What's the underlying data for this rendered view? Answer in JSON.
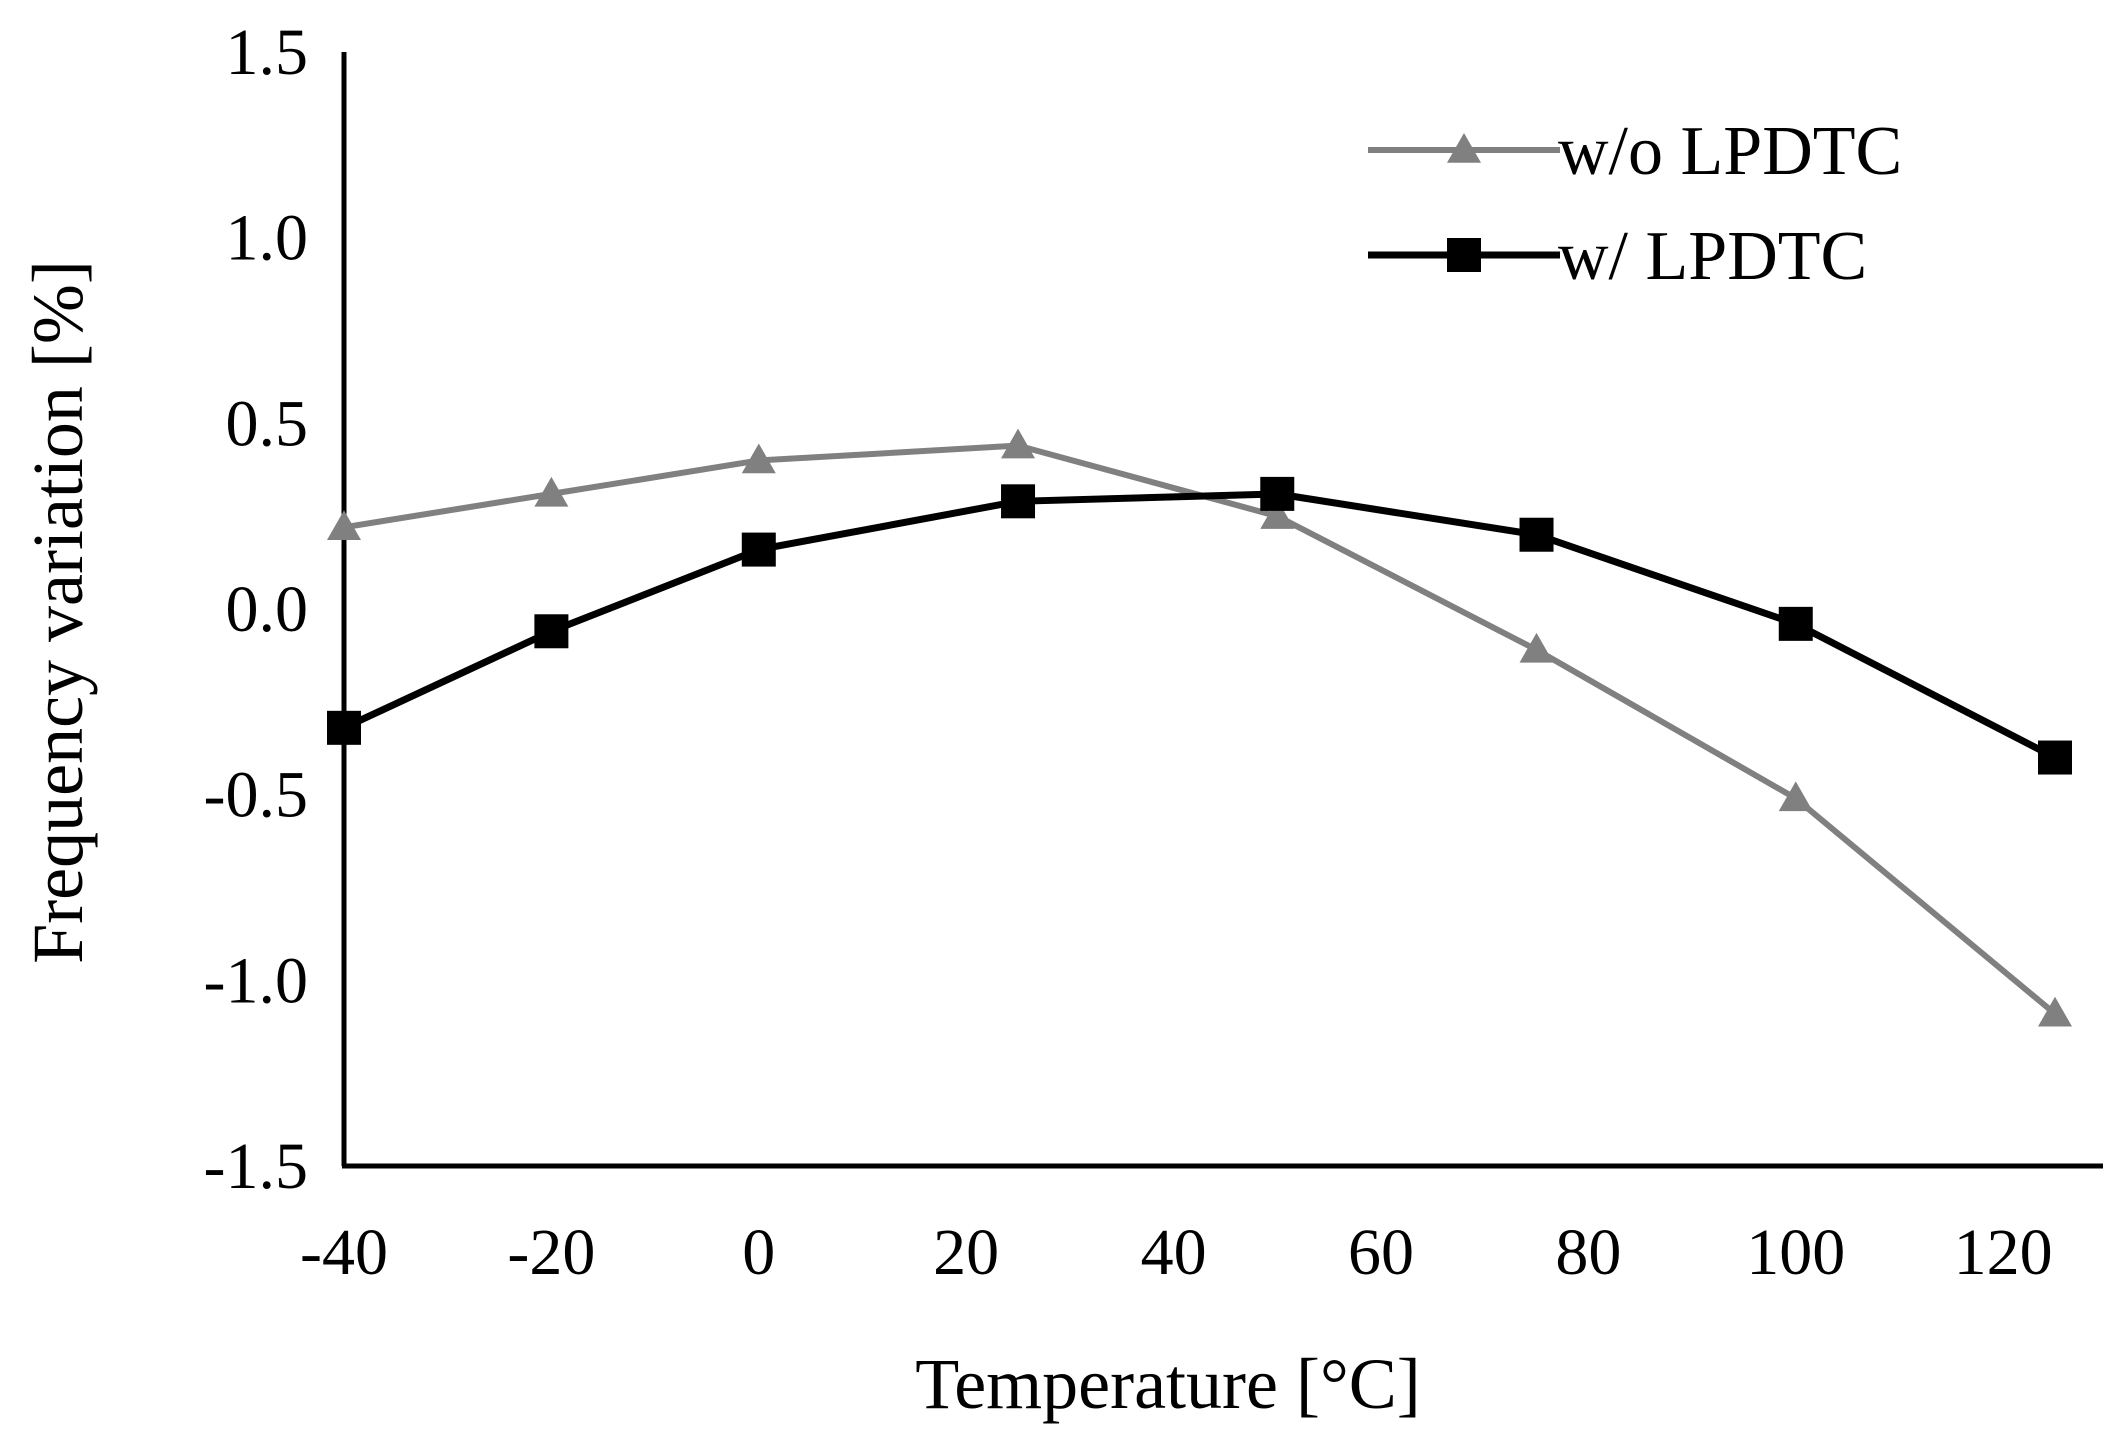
{
  "chart_data": {
    "type": "line",
    "title": "",
    "xlabel": "Temperature [°C]",
    "ylabel": "Frequency variation [%]",
    "xlim": [
      -40,
      125
    ],
    "ylim": [
      -1.5,
      1.5
    ],
    "x_ticks": [
      "-40",
      "-20",
      "0",
      "20",
      "40",
      "60",
      "80",
      "100",
      "120"
    ],
    "y_ticks": [
      "1.5",
      "1.0",
      "0.5",
      "0.0",
      "-0.5",
      "-1.0",
      "-1.5"
    ],
    "grid": false,
    "legend_position": "top-right",
    "series": [
      {
        "name": "w/o LPDTC",
        "color": "#808080",
        "marker": "triangle",
        "x": [
          -40,
          -20,
          0,
          25,
          50,
          75,
          100,
          125
        ],
        "values": [
          0.22,
          0.31,
          0.4,
          0.44,
          0.25,
          -0.11,
          -0.51,
          -1.09
        ]
      },
      {
        "name": "w/ LPDTC",
        "color": "#000000",
        "marker": "square",
        "x": [
          -40,
          -20,
          0,
          25,
          50,
          75,
          100,
          125
        ],
        "values": [
          -0.32,
          -0.06,
          0.16,
          0.29,
          0.31,
          0.2,
          -0.04,
          -0.4
        ]
      }
    ]
  }
}
